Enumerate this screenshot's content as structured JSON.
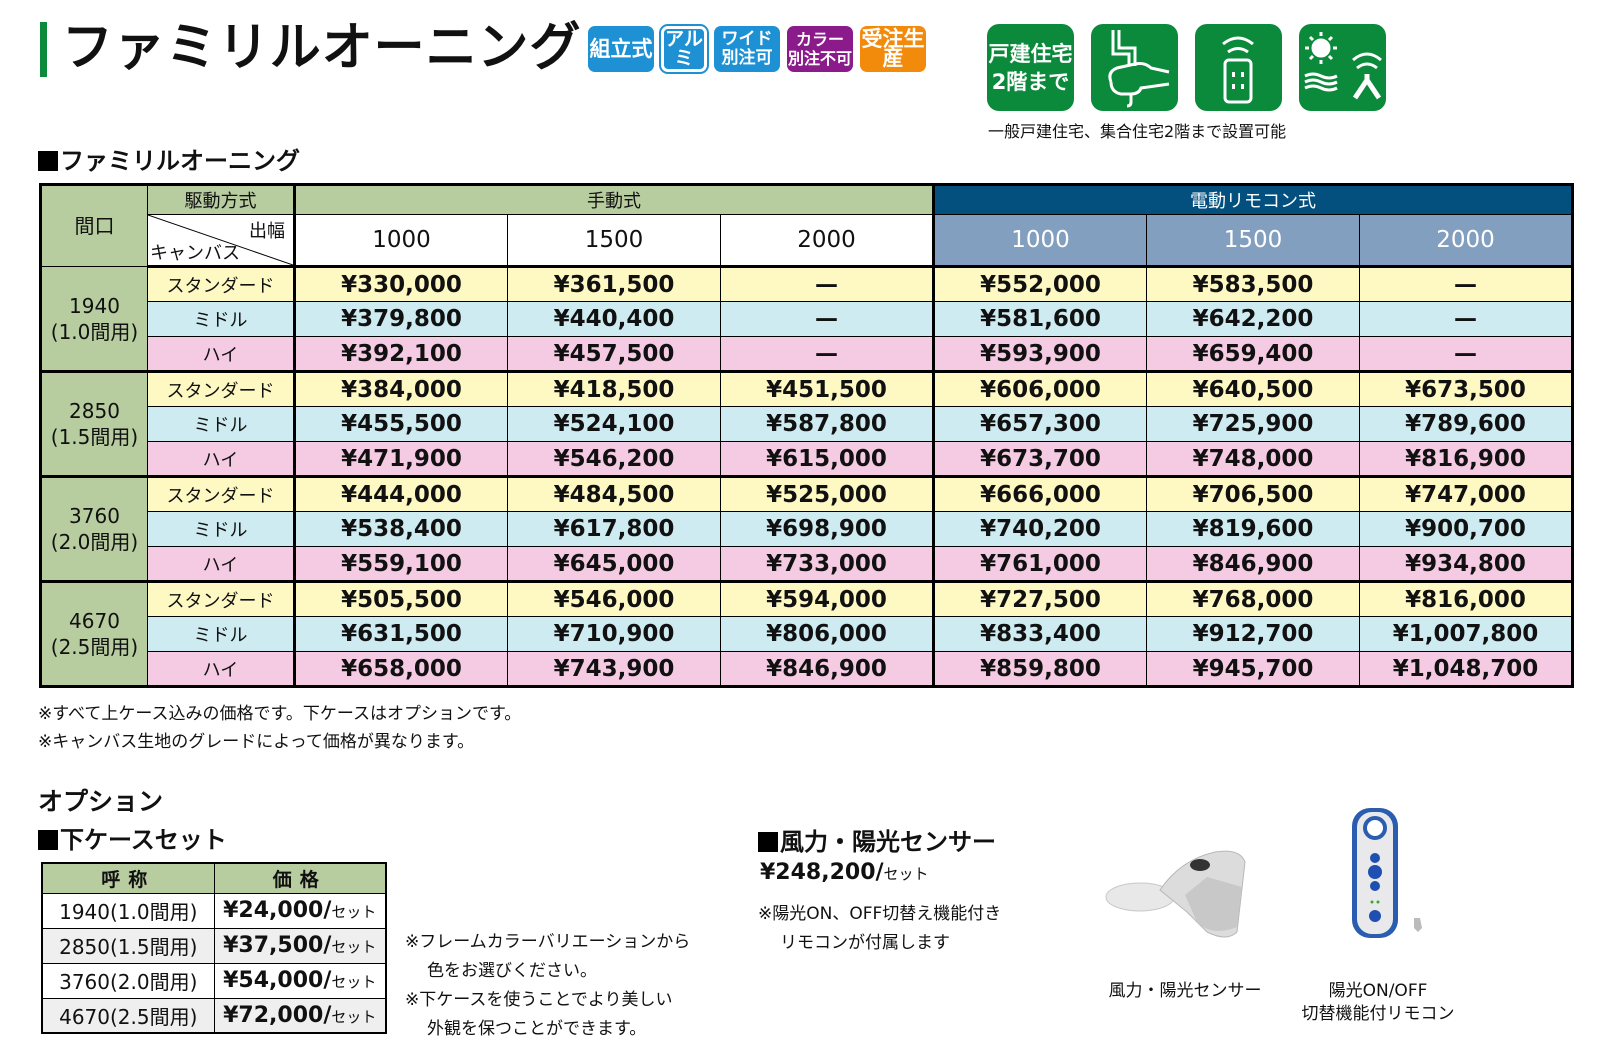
{
  "header": {
    "title": "ファミリルオーニング",
    "badges": [
      {
        "label": "組立式",
        "color": "#1e90d4"
      },
      {
        "label": "アルミ",
        "color": "#1e90d4"
      },
      {
        "line1": "ワイド",
        "line2": "別注可",
        "color": "#1e90d4"
      },
      {
        "line1": "カラー",
        "line2": "別注不可",
        "color": "#8b1a8b"
      },
      {
        "label": "受注生産",
        "color": "#f28a0b"
      }
    ],
    "feature_icons": [
      {
        "name": "detached-house-2f-icon",
        "line1": "戸建住宅",
        "line2": "2階まで"
      },
      {
        "name": "hand-crank-icon"
      },
      {
        "name": "remote-control-icon"
      },
      {
        "name": "sun-wind-sensor-icon"
      }
    ],
    "feature_caption": "一般戸建住宅、集合住宅2階まで設置可能",
    "accent_green": "#0a8a3a"
  },
  "main_table": {
    "section_title": "ファミリルオーニング",
    "col_maguchi": "間口",
    "col_drive": "駆動方式",
    "diag_top": "出幅",
    "diag_bottom": "キャンバス",
    "manual_label": "手動式",
    "electric_label": "電動リモコン式",
    "widths": [
      "1000",
      "1500",
      "2000"
    ],
    "groups": [
      {
        "width": "1940",
        "span": "(1.0間用)",
        "rows": [
          {
            "canvas": "スタンダード",
            "manual": [
              "¥330,000",
              "¥361,500",
              "—"
            ],
            "electric": [
              "¥552,000",
              "¥583,500",
              "—"
            ]
          },
          {
            "canvas": "ミドル",
            "manual": [
              "¥379,800",
              "¥440,400",
              "—"
            ],
            "electric": [
              "¥581,600",
              "¥642,200",
              "—"
            ]
          },
          {
            "canvas": "ハイ",
            "manual": [
              "¥392,100",
              "¥457,500",
              "—"
            ],
            "electric": [
              "¥593,900",
              "¥659,400",
              "—"
            ]
          }
        ]
      },
      {
        "width": "2850",
        "span": "(1.5間用)",
        "rows": [
          {
            "canvas": "スタンダード",
            "manual": [
              "¥384,000",
              "¥418,500",
              "¥451,500"
            ],
            "electric": [
              "¥606,000",
              "¥640,500",
              "¥673,500"
            ]
          },
          {
            "canvas": "ミドル",
            "manual": [
              "¥455,500",
              "¥524,100",
              "¥587,800"
            ],
            "electric": [
              "¥657,300",
              "¥725,900",
              "¥789,600"
            ]
          },
          {
            "canvas": "ハイ",
            "manual": [
              "¥471,900",
              "¥546,200",
              "¥615,000"
            ],
            "electric": [
              "¥673,700",
              "¥748,000",
              "¥816,900"
            ]
          }
        ]
      },
      {
        "width": "3760",
        "span": "(2.0間用)",
        "rows": [
          {
            "canvas": "スタンダード",
            "manual": [
              "¥444,000",
              "¥484,500",
              "¥525,000"
            ],
            "electric": [
              "¥666,000",
              "¥706,500",
              "¥747,000"
            ]
          },
          {
            "canvas": "ミドル",
            "manual": [
              "¥538,400",
              "¥617,800",
              "¥698,900"
            ],
            "electric": [
              "¥740,200",
              "¥819,600",
              "¥900,700"
            ]
          },
          {
            "canvas": "ハイ",
            "manual": [
              "¥559,100",
              "¥645,000",
              "¥733,000"
            ],
            "electric": [
              "¥761,000",
              "¥846,900",
              "¥934,800"
            ]
          }
        ]
      },
      {
        "width": "4670",
        "span": "(2.5間用)",
        "rows": [
          {
            "canvas": "スタンダード",
            "manual": [
              "¥505,500",
              "¥546,000",
              "¥594,000"
            ],
            "electric": [
              "¥727,500",
              "¥768,000",
              "¥816,000"
            ]
          },
          {
            "canvas": "ミドル",
            "manual": [
              "¥631,500",
              "¥710,900",
              "¥806,000"
            ],
            "electric": [
              "¥833,400",
              "¥912,700",
              "¥1,007,800"
            ]
          },
          {
            "canvas": "ハイ",
            "manual": [
              "¥658,000",
              "¥743,900",
              "¥846,900"
            ],
            "electric": [
              "¥859,800",
              "¥945,700",
              "¥1,048,700"
            ]
          }
        ]
      }
    ],
    "notes": [
      "※すべて上ケース込みの価格です。下ケースはオプションです。",
      "※キャンバス生地のグレードによって価格が異なります。"
    ]
  },
  "options": {
    "title": "オプション",
    "lower_case": {
      "section_title": "下ケースセット",
      "headers": [
        "呼称",
        "価格"
      ],
      "unit": "セット",
      "rows": [
        {
          "name": "1940(1.0間用)",
          "price": "¥24,000/"
        },
        {
          "name": "2850(1.5間用)",
          "price": "¥37,500/"
        },
        {
          "name": "3760(2.0間用)",
          "price": "¥54,000/"
        },
        {
          "name": "4670(2.5間用)",
          "price": "¥72,000/"
        }
      ],
      "notes": [
        "※フレームカラーバリエーションから",
        "色をお選びください。",
        "※下ケースを使うことでより美しい",
        "外観を保つことができます。"
      ]
    },
    "sensor": {
      "section_title": "風力・陽光センサー",
      "price": "¥248,200/",
      "unit": "セット",
      "note_line1": "※陽光ON、OFF切替え機能付き",
      "note_line2": "リモコンが付属します",
      "image_caption_sensor": "風力・陽光センサー",
      "image_caption_remote_1": "陽光ON/OFF",
      "image_caption_remote_2": "切替機能付リモコン"
    }
  }
}
